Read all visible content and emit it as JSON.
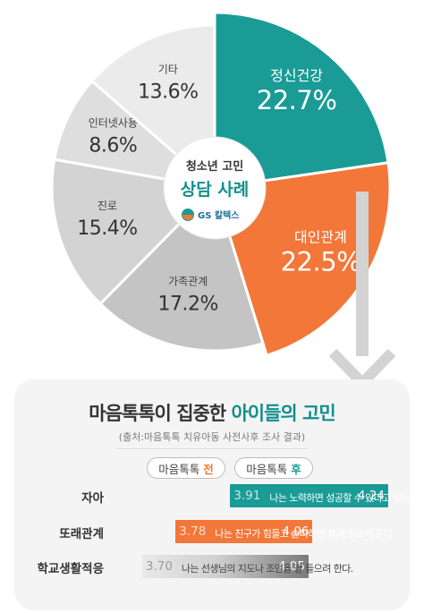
{
  "chart_data": [
    {
      "type": "pie",
      "center_title": "청소년 고민",
      "center_subtitle": "상담 사례",
      "logo_text": "GS 칼텍스",
      "slices": [
        {
          "label": "정신건강",
          "value": 22.7,
          "value_text": "22.7%",
          "color": "#1a9b96"
        },
        {
          "label": "대인관계",
          "value": 22.5,
          "value_text": "22.5%",
          "color": "#f27739"
        },
        {
          "label": "가족관계",
          "value": 17.2,
          "value_text": "17.2%",
          "color": "#c4c4c4"
        },
        {
          "label": "진로",
          "value": 15.4,
          "value_text": "15.4%",
          "color": "#d3d3d3"
        },
        {
          "label": "인터넷사용",
          "value": 8.6,
          "value_text": "8.6%",
          "color": "#dedede"
        },
        {
          "label": "기타",
          "value": 13.6,
          "value_text": "13.6%",
          "color": "#ebebeb"
        }
      ]
    },
    {
      "type": "bar",
      "title_prefix": "마음톡톡이 집중한 ",
      "title_highlight": "아이들의 고민",
      "source": "(출처:마음톡톡 치유아동 사전사후 조사 결과)",
      "legend": [
        {
          "text": "마음톡톡",
          "tag": "전",
          "color": "#f27739"
        },
        {
          "text": "마음톡톡",
          "tag": "후",
          "color": "#1a9b96"
        }
      ],
      "xlim": [
        3.6,
        4.3
      ],
      "rows": [
        {
          "label": "자아",
          "statement": "나는 노력하면 성공할 수 있다고 믿는다.",
          "before": 3.91,
          "after": 4.24,
          "before_text": "3.91",
          "after_text": "4.24",
          "color": "#1a9b96"
        },
        {
          "label": "또래관계",
          "statement": "나는 친구가 힘들고 슬퍼하면 함께 위로해 준다.",
          "before": 3.78,
          "after": 4.06,
          "before_text": "3.78",
          "after_text": "4.06",
          "color": "#f27739"
        },
        {
          "label": "학교생활적응",
          "statement": "나는 선생님의 지도나 조언을 잘 들으려 한다.",
          "before": 3.7,
          "after": 4.05,
          "before_text": "3.70",
          "after_text": "4.05",
          "color": "#8a8a8a"
        }
      ]
    }
  ]
}
